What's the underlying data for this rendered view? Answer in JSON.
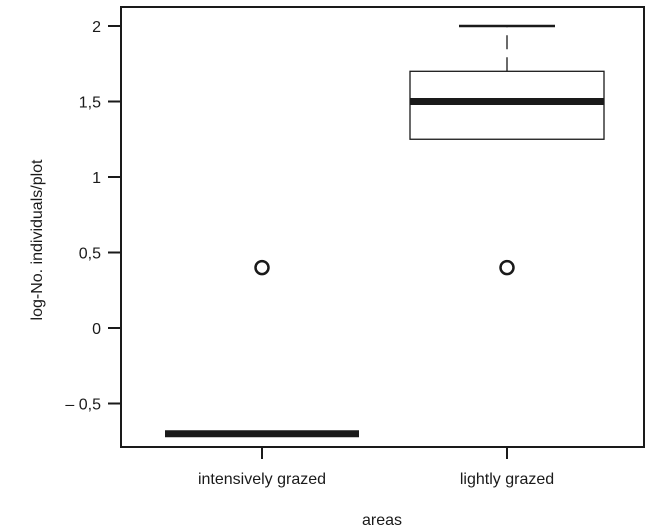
{
  "chart_data": {
    "type": "box",
    "xlabel": "areas",
    "ylabel": "log-No. individuals/plot",
    "ylim": [
      -0.8,
      2.1
    ],
    "y_ticks": [
      {
        "value": 2,
        "label": "2"
      },
      {
        "value": 1.5,
        "label": "1,5"
      },
      {
        "value": 1,
        "label": "1"
      },
      {
        "value": 0.5,
        "label": "0,5"
      },
      {
        "value": 0,
        "label": "0"
      },
      {
        "value": -0.5,
        "label": "– 0,5"
      }
    ],
    "categories": [
      "intensively grazed",
      "lightly grazed"
    ],
    "boxes": [
      {
        "category": "intensively grazed",
        "whisker_low": -0.7,
        "q1": -0.7,
        "median": -0.7,
        "q3": -0.7,
        "whisker_high": -0.7,
        "outliers": [
          0.4
        ]
      },
      {
        "category": "lightly grazed",
        "whisker_low": 1.25,
        "q1": 1.25,
        "median": 1.5,
        "q3": 1.7,
        "whisker_high": 2.0,
        "outliers": [
          0.4
        ]
      }
    ],
    "grid": false,
    "legend": "none",
    "colors": {
      "line": "#1a1a1a",
      "background": "#ffffff"
    }
  }
}
